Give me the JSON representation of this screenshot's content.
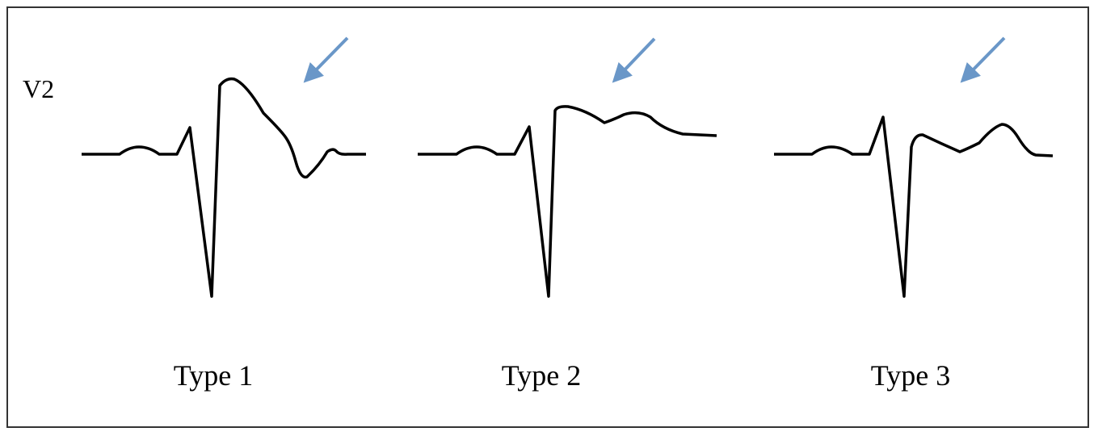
{
  "lead_label": "V2",
  "panels": [
    {
      "label": "Type 1"
    },
    {
      "label": "Type 2"
    },
    {
      "label": "Type 3"
    }
  ],
  "colors": {
    "trace": "#000000",
    "arrow": "#6a97c8",
    "border": "#333333"
  },
  "icons": [
    "arrow-down-left-icon"
  ]
}
